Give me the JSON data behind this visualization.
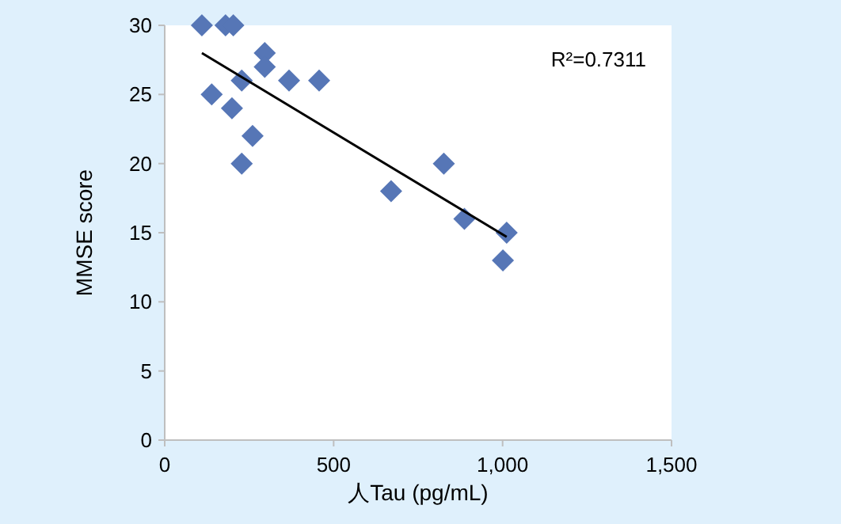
{
  "chart_data": {
    "type": "scatter",
    "xlabel": "人Tau (pg/mL)",
    "ylabel": "MMSE score",
    "xlim": [
      0,
      1500
    ],
    "ylim": [
      0,
      30
    ],
    "xticks": [
      0,
      500,
      {
        "value": 1000,
        "label": "1,000"
      },
      {
        "value": 1500,
        "label": "1,500"
      }
    ],
    "yticks": [
      0,
      5,
      10,
      15,
      20,
      25,
      30
    ],
    "annotations": [
      "R²=0.7311"
    ],
    "series": [
      {
        "marker": "diamond",
        "color": "#5676b6",
        "x": [
          110,
          180,
          203,
          296,
          296,
          228,
          368,
          457,
          139,
          199,
          260,
          228,
          670,
          826,
          887,
          1012,
          1001
        ],
        "values": [
          30,
          30,
          30,
          28,
          27,
          26,
          26,
          26,
          25,
          24,
          22,
          20,
          18,
          20,
          16,
          15,
          13
        ]
      },
      {
        "type": "line",
        "marker": "none",
        "color": "#000000",
        "x": [
          110,
          1012
        ],
        "values": [
          28.0,
          14.7
        ]
      }
    ]
  }
}
